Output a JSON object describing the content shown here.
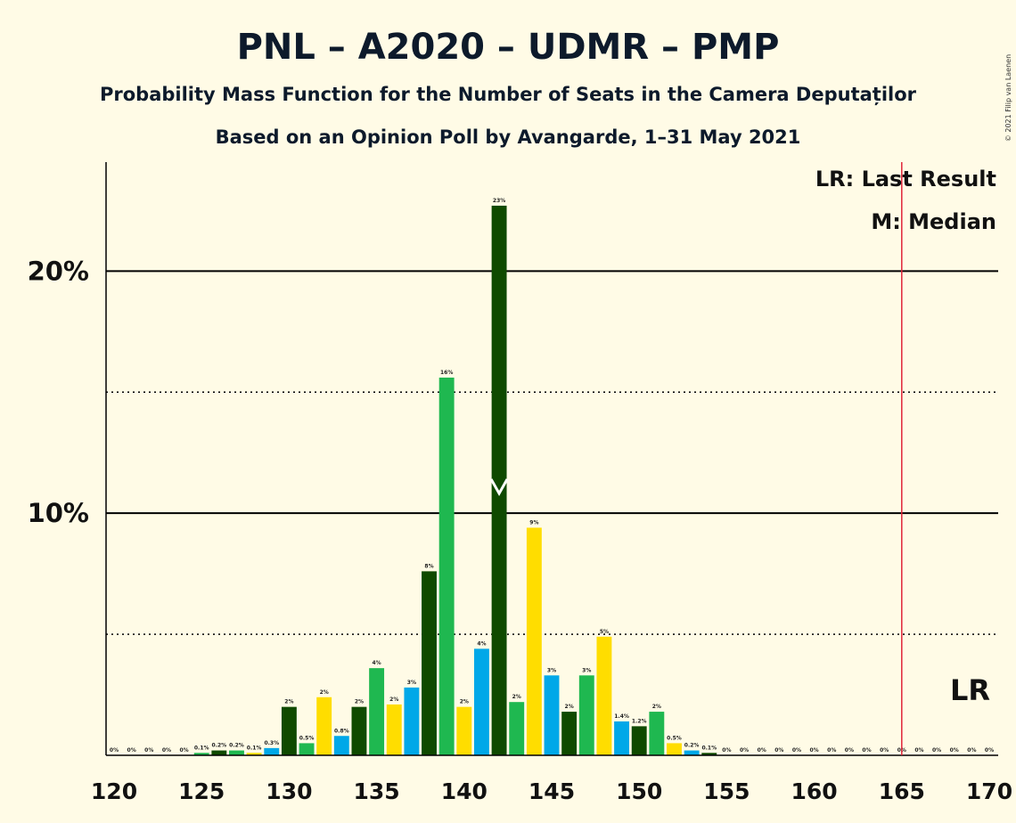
{
  "chart_data": {
    "type": "bar",
    "title": "PNL – A2020 – UDMR – PMP",
    "subtitle": "Probability Mass Function for the Number of Seats in the Camera Deputaților",
    "subtitle2": "Based on an Opinion Poll by Avangarde, 1–31 May 2021",
    "copyright": "© 2021 Filip van Laenen",
    "legend": {
      "lr": "LR: Last Result",
      "median": "M: Median",
      "placement": "top-right"
    },
    "lr_label": "LR",
    "last_result": 165,
    "median": 142,
    "xlim": [
      120,
      170
    ],
    "ylim": [
      0,
      24.5
    ],
    "x_ticks": [
      {
        "value": 120,
        "label": "120"
      },
      {
        "value": 125,
        "label": "125"
      },
      {
        "value": 130,
        "label": "130"
      },
      {
        "value": 135,
        "label": "135"
      },
      {
        "value": 140,
        "label": "140"
      },
      {
        "value": 145,
        "label": "145"
      },
      {
        "value": 150,
        "label": "150"
      },
      {
        "value": 155,
        "label": "155"
      },
      {
        "value": 160,
        "label": "160"
      },
      {
        "value": 165,
        "label": "165"
      },
      {
        "value": 170,
        "label": "170"
      }
    ],
    "y_ticks": [
      {
        "value": 10,
        "label": "10%"
      },
      {
        "value": 20,
        "label": "20%"
      }
    ],
    "dotted_lines": [
      5,
      15
    ],
    "colors": {
      "dark_green": "#0f4a00",
      "green": "#1fb850",
      "yellow": "#ffdd00",
      "blue": "#00a8e8",
      "lr_line": "#e0253a",
      "grid": "#000000"
    },
    "bars": [
      {
        "x": 120,
        "value": 0,
        "label": "0%",
        "color": "dark_green"
      },
      {
        "x": 121,
        "value": 0,
        "label": "0%",
        "color": "green"
      },
      {
        "x": 122,
        "value": 0,
        "label": "0%",
        "color": "yellow"
      },
      {
        "x": 123,
        "value": 0,
        "label": "0%",
        "color": "blue"
      },
      {
        "x": 124,
        "value": 0,
        "label": "0%",
        "color": "dark_green"
      },
      {
        "x": 125,
        "value": 0.1,
        "label": "0.1%",
        "color": "green"
      },
      {
        "x": 126,
        "value": 0.2,
        "label": "0.2%",
        "color": "dark_green"
      },
      {
        "x": 127,
        "value": 0.2,
        "label": "0.2%",
        "color": "green"
      },
      {
        "x": 128,
        "value": 0.1,
        "label": "0.1%",
        "color": "yellow"
      },
      {
        "x": 129,
        "value": 0.3,
        "label": "0.3%",
        "color": "blue"
      },
      {
        "x": 130,
        "value": 2.0,
        "label": "2%",
        "color": "dark_green"
      },
      {
        "x": 131,
        "value": 0.5,
        "label": "0.5%",
        "color": "green"
      },
      {
        "x": 132,
        "value": 2.4,
        "label": "2%",
        "color": "yellow"
      },
      {
        "x": 133,
        "value": 0.8,
        "label": "0.8%",
        "color": "blue"
      },
      {
        "x": 134,
        "value": 2.0,
        "label": "2%",
        "color": "dark_green"
      },
      {
        "x": 135,
        "value": 3.6,
        "label": "4%",
        "color": "green"
      },
      {
        "x": 136,
        "value": 2.1,
        "label": "2%",
        "color": "yellow"
      },
      {
        "x": 137,
        "value": 2.8,
        "label": "3%",
        "color": "blue"
      },
      {
        "x": 138,
        "value": 7.6,
        "label": "8%",
        "color": "dark_green"
      },
      {
        "x": 139,
        "value": 15.6,
        "label": "16%",
        "color": "green"
      },
      {
        "x": 140,
        "value": 2.0,
        "label": "2%",
        "color": "yellow"
      },
      {
        "x": 141,
        "value": 4.4,
        "label": "4%",
        "color": "blue"
      },
      {
        "x": 142,
        "value": 22.7,
        "label": "23%",
        "color": "dark_green"
      },
      {
        "x": 143,
        "value": 2.2,
        "label": "2%",
        "color": "green"
      },
      {
        "x": 144,
        "value": 9.4,
        "label": "9%",
        "color": "yellow"
      },
      {
        "x": 145,
        "value": 3.3,
        "label": "3%",
        "color": "blue"
      },
      {
        "x": 146,
        "value": 1.8,
        "label": "2%",
        "color": "dark_green"
      },
      {
        "x": 147,
        "value": 3.3,
        "label": "3%",
        "color": "green"
      },
      {
        "x": 148,
        "value": 4.9,
        "label": "5%",
        "color": "yellow"
      },
      {
        "x": 149,
        "value": 1.4,
        "label": "1.4%",
        "color": "blue"
      },
      {
        "x": 150,
        "value": 1.2,
        "label": "1.2%",
        "color": "dark_green"
      },
      {
        "x": 151,
        "value": 1.8,
        "label": "2%",
        "color": "green"
      },
      {
        "x": 152,
        "value": 0.5,
        "label": "0.5%",
        "color": "yellow"
      },
      {
        "x": 153,
        "value": 0.2,
        "label": "0.2%",
        "color": "blue"
      },
      {
        "x": 154,
        "value": 0.1,
        "label": "0.1%",
        "color": "dark_green"
      },
      {
        "x": 155,
        "value": 0,
        "label": "0%",
        "color": "green"
      },
      {
        "x": 156,
        "value": 0,
        "label": "0%",
        "color": "yellow"
      },
      {
        "x": 157,
        "value": 0,
        "label": "0%",
        "color": "blue"
      },
      {
        "x": 158,
        "value": 0,
        "label": "0%",
        "color": "dark_green"
      },
      {
        "x": 159,
        "value": 0,
        "label": "0%",
        "color": "green"
      },
      {
        "x": 160,
        "value": 0,
        "label": "0%",
        "color": "yellow"
      },
      {
        "x": 161,
        "value": 0,
        "label": "0%",
        "color": "blue"
      },
      {
        "x": 162,
        "value": 0,
        "label": "0%",
        "color": "dark_green"
      },
      {
        "x": 163,
        "value": 0,
        "label": "0%",
        "color": "green"
      },
      {
        "x": 164,
        "value": 0,
        "label": "0%",
        "color": "yellow"
      },
      {
        "x": 165,
        "value": 0,
        "label": "0%",
        "color": "blue"
      },
      {
        "x": 166,
        "value": 0,
        "label": "0%",
        "color": "dark_green"
      },
      {
        "x": 167,
        "value": 0,
        "label": "0%",
        "color": "green"
      },
      {
        "x": 168,
        "value": 0,
        "label": "0%",
        "color": "yellow"
      },
      {
        "x": 169,
        "value": 0,
        "label": "0%",
        "color": "blue"
      },
      {
        "x": 170,
        "value": 0,
        "label": "0%",
        "color": "dark_green"
      }
    ]
  }
}
